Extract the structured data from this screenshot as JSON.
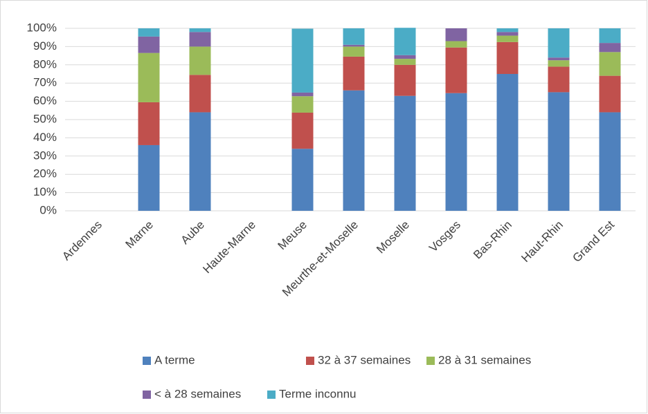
{
  "chart_data": {
    "type": "stacked_bar",
    "categories": [
      "Ardennes",
      "Marne",
      "Aube",
      "Haute-Marne",
      "Meuse",
      "Meurthe-et-Moselle",
      "Moselle",
      "Vosges",
      "Bas-Rhin",
      "Haut-Rhin",
      "Grand Est"
    ],
    "series": [
      {
        "name": "A terme",
        "color": "#4f81bd",
        "values": [
          null,
          36,
          54,
          null,
          34,
          66,
          63,
          64.5,
          75,
          65,
          54
        ]
      },
      {
        "name": "32 à 37 semaines",
        "color": "#c0504d",
        "values": [
          null,
          23.5,
          20.5,
          null,
          19.8,
          18.5,
          17,
          25,
          17.5,
          14,
          20
        ]
      },
      {
        "name": "28 à 31 semaines",
        "color": "#9bbb59",
        "values": [
          null,
          27,
          15.5,
          null,
          9,
          5.5,
          3.3,
          3.5,
          3.5,
          3.5,
          13
        ]
      },
      {
        "name": "< à 28 semaines",
        "color": "#8064a2",
        "values": [
          null,
          9,
          8,
          null,
          2,
          1,
          2,
          7,
          2,
          1.5,
          5
        ]
      },
      {
        "name": "Terme inconnu",
        "color": "#4bacc6",
        "values": [
          null,
          4.5,
          2,
          null,
          35,
          9,
          15,
          0,
          2,
          16,
          8
        ]
      }
    ],
    "ylim": [
      0,
      100
    ],
    "yticks": [
      {
        "value": 0,
        "label": "0%"
      },
      {
        "value": 10,
        "label": "10%"
      },
      {
        "value": 20,
        "label": "20%"
      },
      {
        "value": 30,
        "label": "30%"
      },
      {
        "value": 40,
        "label": "40%"
      },
      {
        "value": 50,
        "label": "50%"
      },
      {
        "value": 60,
        "label": "60%"
      },
      {
        "value": 70,
        "label": "70%"
      },
      {
        "value": 80,
        "label": "80%"
      },
      {
        "value": 90,
        "label": "90%"
      },
      {
        "value": 100,
        "label": "100%"
      }
    ],
    "grid": true,
    "legend": "bottom"
  }
}
